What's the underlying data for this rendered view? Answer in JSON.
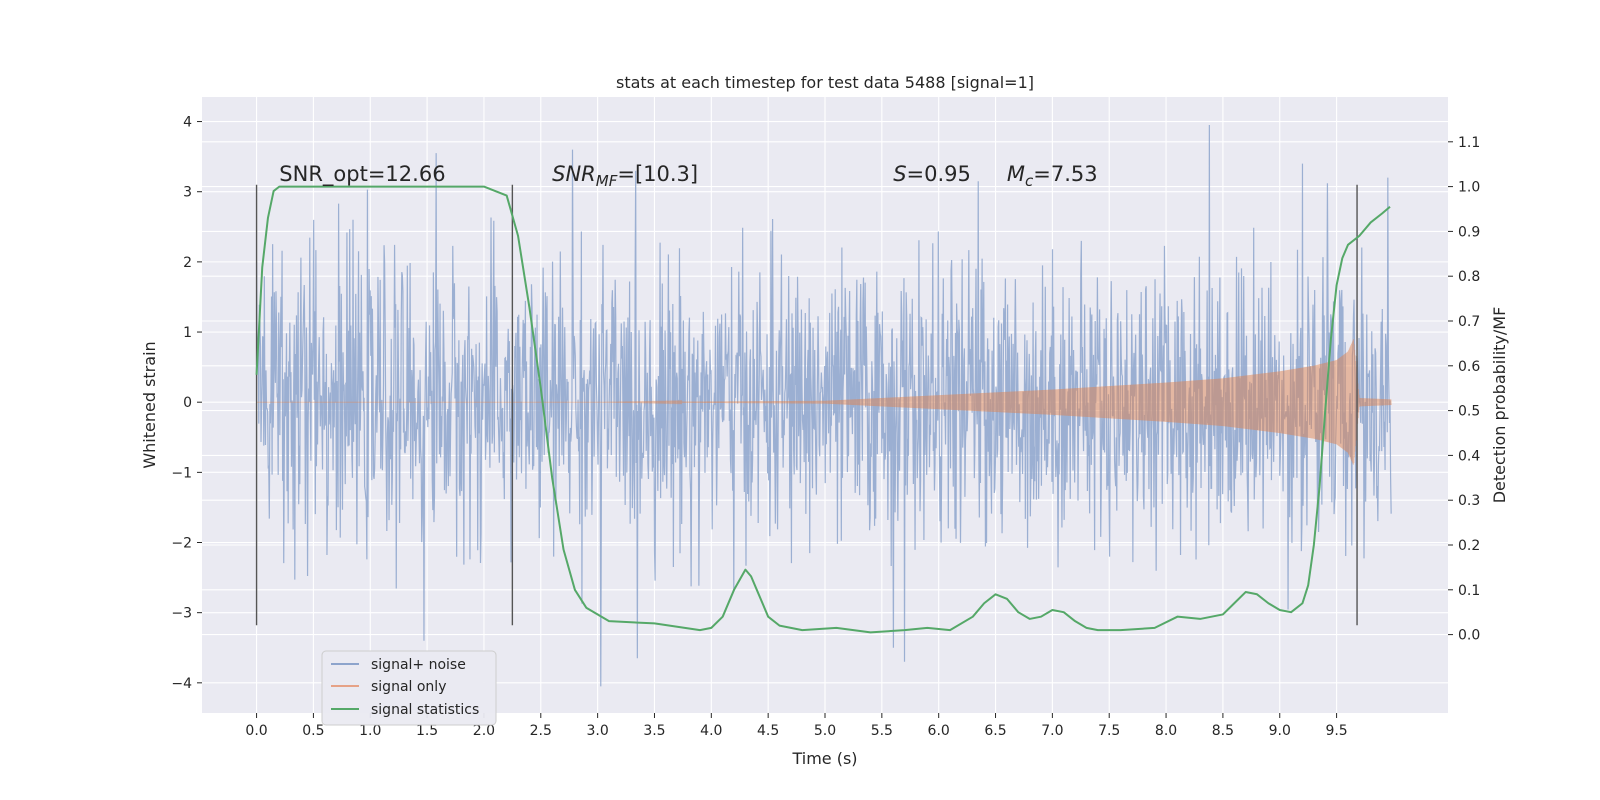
{
  "chart_data": {
    "type": "line",
    "title": "stats at each timestep for test data 5488 [signal=1]",
    "xlabel": "Time (s)",
    "ylabel": "Whitened strain",
    "y2label": "Detection probability/MF",
    "xlim": [
      -0.48,
      10.48
    ],
    "ylim": [
      -4.43,
      4.35
    ],
    "y2lim": [
      -0.175,
      1.2
    ],
    "x_ticks": [
      "0.0",
      "0.5",
      "1.0",
      "1.5",
      "2.0",
      "2.5",
      "3.0",
      "3.5",
      "4.0",
      "4.5",
      "5.0",
      "5.5",
      "6.0",
      "6.5",
      "7.0",
      "7.5",
      "8.0",
      "8.5",
      "9.0",
      "9.5"
    ],
    "x_tick_values": [
      0.0,
      0.5,
      1.0,
      1.5,
      2.0,
      2.5,
      3.0,
      3.5,
      4.0,
      4.5,
      5.0,
      5.5,
      6.0,
      6.5,
      7.0,
      7.5,
      8.0,
      8.5,
      9.0,
      9.5
    ],
    "y_ticks": [
      "4",
      "3",
      "2",
      "1",
      "0",
      "−1",
      "−2",
      "−3",
      "−4"
    ],
    "y_tick_values": [
      4,
      3,
      2,
      1,
      0,
      -1,
      -2,
      -3,
      -4
    ],
    "y2_ticks": [
      "1.1",
      "1.0",
      "0.9",
      "0.8",
      "0.7",
      "0.6",
      "0.5",
      "0.4",
      "0.3",
      "0.2",
      "0.1",
      "0.0"
    ],
    "y2_tick_values": [
      1.1,
      1.0,
      0.9,
      0.8,
      0.7,
      0.6,
      0.5,
      0.4,
      0.3,
      0.2,
      0.1,
      0.0
    ],
    "grid": true,
    "legend_position": "lower-left",
    "annotations": [
      {
        "parts": [
          {
            "t": "SNR_opt=12.66",
            "i": false
          }
        ],
        "x": 0.2,
        "y": 3.15
      },
      {
        "parts": [
          {
            "t": "SNR",
            "i": true
          },
          {
            "t": "MF",
            "i": true,
            "sub": true
          },
          {
            "t": "=[10.3]",
            "i": false
          }
        ],
        "x": 2.6,
        "y": 3.15
      },
      {
        "parts": [
          {
            "t": "S",
            "i": true
          },
          {
            "t": "=0.95",
            "i": false
          }
        ],
        "x": 5.6,
        "y": 3.15
      },
      {
        "parts": [
          {
            "t": "M",
            "i": true
          },
          {
            "t": "c",
            "i": true,
            "sub": true
          },
          {
            "t": "=7.53",
            "i": false
          }
        ],
        "x": 6.6,
        "y": 3.15
      }
    ],
    "vlines": [
      0.0,
      2.25,
      9.68
    ],
    "vline_range": [
      -3.18,
      3.1
    ],
    "series": [
      {
        "name": "signal+ noise",
        "color": "#4c72b0",
        "axis": "left",
        "x_range": [
          0.0,
          9.98
        ],
        "envelope_x": [
          0.0,
          2.0,
          4.0,
          6.0,
          8.0,
          9.5,
          9.98
        ],
        "envelope_std": [
          0.95,
          0.95,
          0.95,
          0.95,
          0.95,
          0.95,
          0.95
        ],
        "peak_points": [
          [
            0.0,
            2.0
          ],
          [
            0.85,
            2.6
          ],
          [
            1.47,
            -3.4
          ],
          [
            1.58,
            3.55
          ],
          [
            2.78,
            3.6
          ],
          [
            3.03,
            -4.05
          ],
          [
            3.35,
            -3.65
          ],
          [
            5.6,
            -3.5
          ],
          [
            5.7,
            -3.7
          ],
          [
            6.35,
            3.15
          ],
          [
            8.38,
            3.95
          ],
          [
            9.2,
            3.4
          ],
          [
            9.42,
            3.12
          ],
          [
            9.95,
            3.2
          ]
        ]
      },
      {
        "name": "signal only",
        "color": "#dd8452",
        "axis": "left",
        "amplitude_x": [
          0.0,
          3.0,
          5.0,
          6.0,
          7.0,
          8.0,
          8.5,
          9.0,
          9.3,
          9.5,
          9.6,
          9.65,
          9.7,
          9.98
        ],
        "amplitude_y": [
          0.0,
          0.0,
          0.02,
          0.1,
          0.18,
          0.28,
          0.34,
          0.44,
          0.52,
          0.6,
          0.72,
          0.9,
          0.06,
          0.04
        ]
      },
      {
        "name": "signal statistics",
        "color": "#55a868",
        "axis": "right",
        "x": [
          0.0,
          0.05,
          0.1,
          0.15,
          0.2,
          0.4,
          0.8,
          1.2,
          1.6,
          1.9,
          2.0,
          2.1,
          2.2,
          2.3,
          2.4,
          2.5,
          2.6,
          2.7,
          2.8,
          2.9,
          3.1,
          3.5,
          3.9,
          4.0,
          4.1,
          4.2,
          4.3,
          4.35,
          4.4,
          4.5,
          4.6,
          4.8,
          5.1,
          5.4,
          5.7,
          5.9,
          6.1,
          6.3,
          6.4,
          6.5,
          6.6,
          6.7,
          6.8,
          6.9,
          7.0,
          7.1,
          7.2,
          7.3,
          7.4,
          7.6,
          7.9,
          8.1,
          8.3,
          8.5,
          8.6,
          8.7,
          8.8,
          8.9,
          9.0,
          9.1,
          9.2,
          9.25,
          9.3,
          9.35,
          9.4,
          9.45,
          9.5,
          9.55,
          9.6,
          9.7,
          9.8,
          9.9,
          9.97
        ],
        "y": [
          0.58,
          0.82,
          0.93,
          0.99,
          1.0,
          1.0,
          1.0,
          1.0,
          1.0,
          1.0,
          1.0,
          0.99,
          0.98,
          0.89,
          0.73,
          0.55,
          0.35,
          0.19,
          0.1,
          0.06,
          0.03,
          0.025,
          0.01,
          0.015,
          0.04,
          0.1,
          0.145,
          0.13,
          0.1,
          0.04,
          0.02,
          0.01,
          0.015,
          0.005,
          0.01,
          0.015,
          0.01,
          0.04,
          0.07,
          0.09,
          0.08,
          0.05,
          0.035,
          0.04,
          0.055,
          0.05,
          0.03,
          0.015,
          0.01,
          0.01,
          0.015,
          0.04,
          0.035,
          0.045,
          0.07,
          0.095,
          0.09,
          0.07,
          0.055,
          0.05,
          0.07,
          0.11,
          0.2,
          0.33,
          0.5,
          0.66,
          0.78,
          0.84,
          0.87,
          0.89,
          0.92,
          0.94,
          0.955
        ]
      }
    ]
  }
}
